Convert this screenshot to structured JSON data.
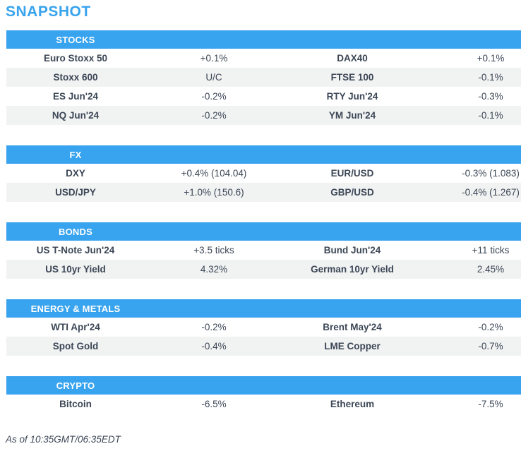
{
  "title": "SNAPSHOT",
  "footer": "As of 10:35GMT/06:35EDT",
  "colors": {
    "accent_blue": "#38a3ee",
    "header_text": "#ffffff",
    "row_alt_gray": "#f1f2f2",
    "text_dark": "#3c4756"
  },
  "sections": [
    {
      "label": "STOCKS",
      "rows": [
        [
          "Euro Stoxx 50",
          "+0.1%",
          "DAX40",
          "+0.1%"
        ],
        [
          "Stoxx 600",
          "U/C",
          "FTSE 100",
          "-0.1%"
        ],
        [
          "ES Jun'24",
          "-0.2%",
          "RTY Jun'24",
          "-0.3%"
        ],
        [
          "NQ Jun'24",
          "-0.2%",
          "YM Jun'24",
          "-0.1%"
        ]
      ]
    },
    {
      "label": "FX",
      "rows": [
        [
          "DXY",
          "+0.4% (104.04)",
          "EUR/USD",
          "-0.3% (1.083)"
        ],
        [
          "USD/JPY",
          "+1.0% (150.6)",
          "GBP/USD",
          "-0.4% (1.267)"
        ]
      ]
    },
    {
      "label": "BONDS",
      "rows": [
        [
          "US T-Note Jun'24",
          "+3.5 ticks",
          "Bund Jun'24",
          "+11 ticks"
        ],
        [
          "US 10yr Yield",
          "4.32%",
          "German 10yr Yield",
          "2.45%"
        ]
      ]
    },
    {
      "label": "ENERGY & METALS",
      "rows": [
        [
          "WTI Apr'24",
          "-0.2%",
          "Brent May'24",
          "-0.2%"
        ],
        [
          "Spot Gold",
          "-0.4%",
          "LME Copper",
          "-0.7%"
        ]
      ]
    },
    {
      "label": "CRYPTO",
      "rows": [
        [
          "Bitcoin",
          "-6.5%",
          "Ethereum",
          "-7.5%"
        ]
      ]
    }
  ]
}
